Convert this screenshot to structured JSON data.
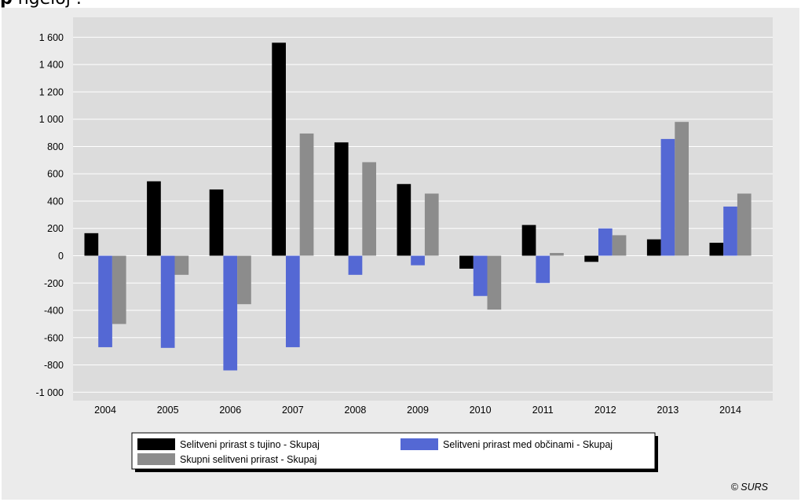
{
  "header_fragment": {
    "bold": "p",
    "text": "      ngeloj         ."
  },
  "credit": "© SURS",
  "chart_data": {
    "type": "bar",
    "categories": [
      "2004",
      "2005",
      "2006",
      "2007",
      "2008",
      "2009",
      "2010",
      "2011",
      "2012",
      "2013",
      "2014"
    ],
    "series": [
      {
        "name": "Selitveni prirast s tujino - Skupaj",
        "color": "#000000",
        "values": [
          165,
          545,
          485,
          1560,
          830,
          525,
          -95,
          225,
          -45,
          120,
          95
        ]
      },
      {
        "name": "Selitveni prirast med občinami - Skupaj",
        "color": "#5468d4",
        "values": [
          -670,
          -675,
          -840,
          -670,
          -140,
          -70,
          -295,
          -200,
          200,
          855,
          360
        ]
      },
      {
        "name": "Skupni selitveni prirast - Skupaj",
        "color": "#8c8c8c",
        "values": [
          -500,
          -140,
          -355,
          895,
          685,
          455,
          -395,
          20,
          150,
          980,
          455
        ]
      }
    ],
    "yticks": [
      1600,
      1400,
      1200,
      1000,
      800,
      600,
      400,
      200,
      0,
      -200,
      -400,
      -600,
      -800,
      -1000
    ],
    "ytick_labels": [
      "1 600",
      "1 400",
      "1 200",
      "1 000",
      "800",
      "600",
      "400",
      "200",
      "0",
      "-200",
      "-400",
      "-600",
      "-800",
      "-1 000"
    ],
    "ylim": [
      -1050,
      1650
    ],
    "grid": true,
    "legend_position": "bottom"
  }
}
